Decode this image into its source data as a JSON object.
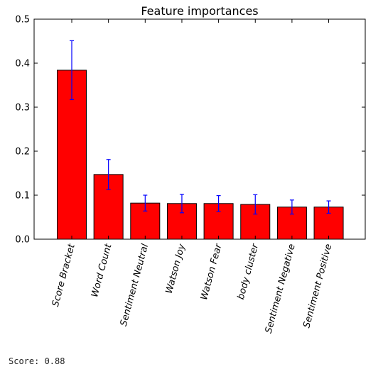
{
  "chart_data": {
    "type": "bar",
    "title": "Feature importances",
    "xlabel": "",
    "ylabel": "",
    "ylim": [
      0,
      0.5
    ],
    "yticks": [
      0.0,
      0.1,
      0.2,
      0.3,
      0.4,
      0.5
    ],
    "ytick_labels": [
      "0.0",
      "0.1",
      "0.2",
      "0.3",
      "0.4",
      "0.5"
    ],
    "categories": [
      "Score Bracket",
      "Word Count",
      "Sentiment Neutral",
      "Watson Joy",
      "Watson Fear",
      "body cluster",
      "Sentiment Negative",
      "Sentiment Positive"
    ],
    "values": [
      0.384,
      0.147,
      0.082,
      0.081,
      0.081,
      0.079,
      0.073,
      0.073
    ],
    "errors": [
      0.067,
      0.034,
      0.018,
      0.021,
      0.018,
      0.022,
      0.016,
      0.014
    ],
    "bar_color": "#ff0000",
    "error_color": "#0000ff",
    "grid": false
  },
  "footer": {
    "score_text": "Score: 0.88"
  }
}
